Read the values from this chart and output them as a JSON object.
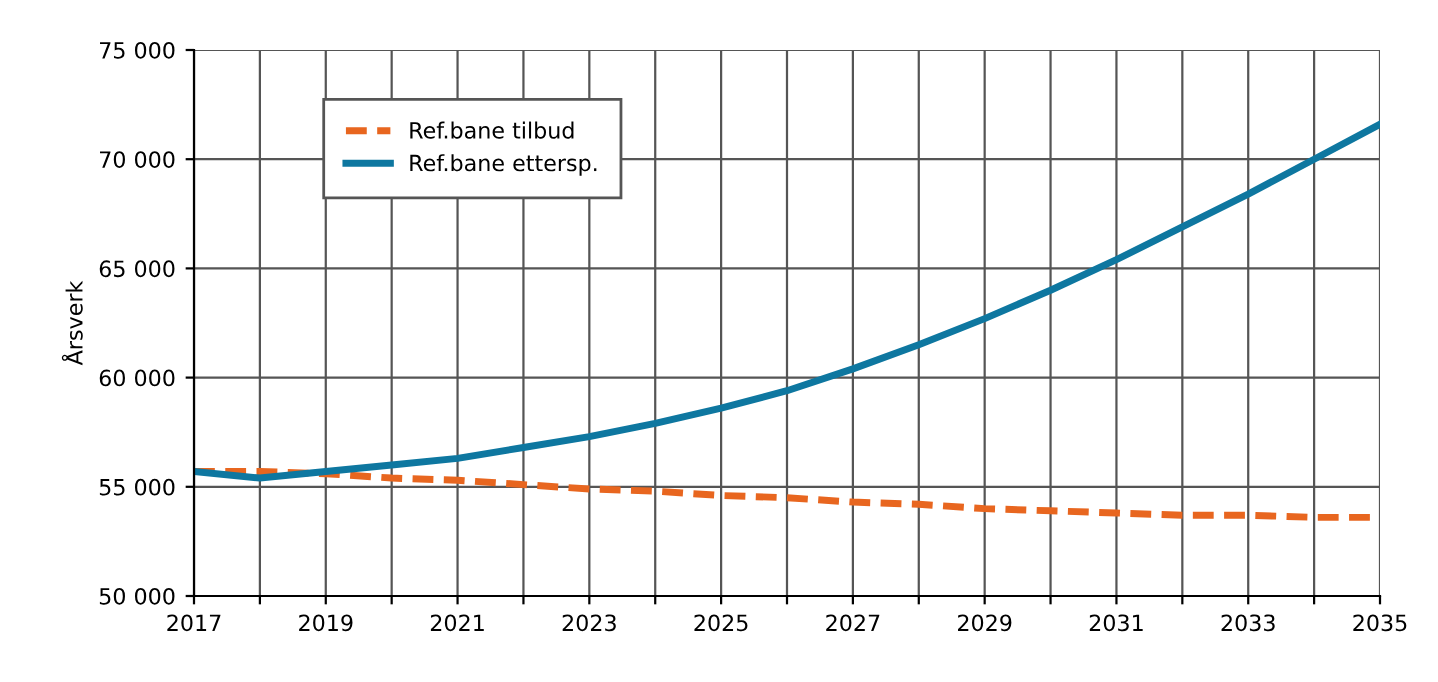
{
  "chart_data": {
    "type": "line",
    "ylabel": "Årsverk",
    "x": [
      2017,
      2018,
      2019,
      2020,
      2021,
      2022,
      2023,
      2024,
      2025,
      2026,
      2027,
      2028,
      2029,
      2030,
      2031,
      2032,
      2033,
      2034,
      2035
    ],
    "series": [
      {
        "name": "Ref.bane tilbud",
        "color": "#e8661f",
        "line_style": "dashed",
        "values": [
          55700,
          55700,
          55600,
          55400,
          55300,
          55100,
          54900,
          54800,
          54600,
          54500,
          54300,
          54200,
          54000,
          53900,
          53800,
          53700,
          53700,
          53600,
          53600
        ]
      },
      {
        "name": "Ref.bane ettersp.",
        "color": "#0e77a0",
        "line_style": "solid",
        "values": [
          55700,
          55400,
          55700,
          56000,
          56300,
          56800,
          57300,
          57900,
          58600,
          59400,
          60400,
          61500,
          62700,
          64000,
          65400,
          66900,
          68400,
          70000,
          71600
        ]
      }
    ],
    "xlim": [
      2017,
      2035
    ],
    "xticks": [
      2017,
      {
        "value": 2018,
        "label": null
      },
      2019,
      {
        "value": 2020,
        "label": null
      },
      2021,
      {
        "value": 2022,
        "label": null
      },
      2023,
      {
        "value": 2024,
        "label": null
      },
      2025,
      {
        "value": 2026,
        "label": null
      },
      2027,
      {
        "value": 2028,
        "label": null
      },
      2029,
      {
        "value": 2030,
        "label": null
      },
      2031,
      {
        "value": 2032,
        "label": null
      },
      2033,
      {
        "value": 2034,
        "label": null
      },
      2035
    ],
    "ylim": [
      50000,
      75000
    ],
    "yticks": [
      {
        "value": 50000,
        "label": "50 000"
      },
      {
        "value": 55000,
        "label": "55 000"
      },
      {
        "value": 60000,
        "label": "60 000"
      },
      {
        "value": 65000,
        "label": "65 000"
      },
      {
        "value": 70000,
        "label": "70 000"
      },
      {
        "value": 75000,
        "label": "75 000"
      }
    ],
    "grid": true,
    "legend": "top left",
    "marker": "none"
  }
}
